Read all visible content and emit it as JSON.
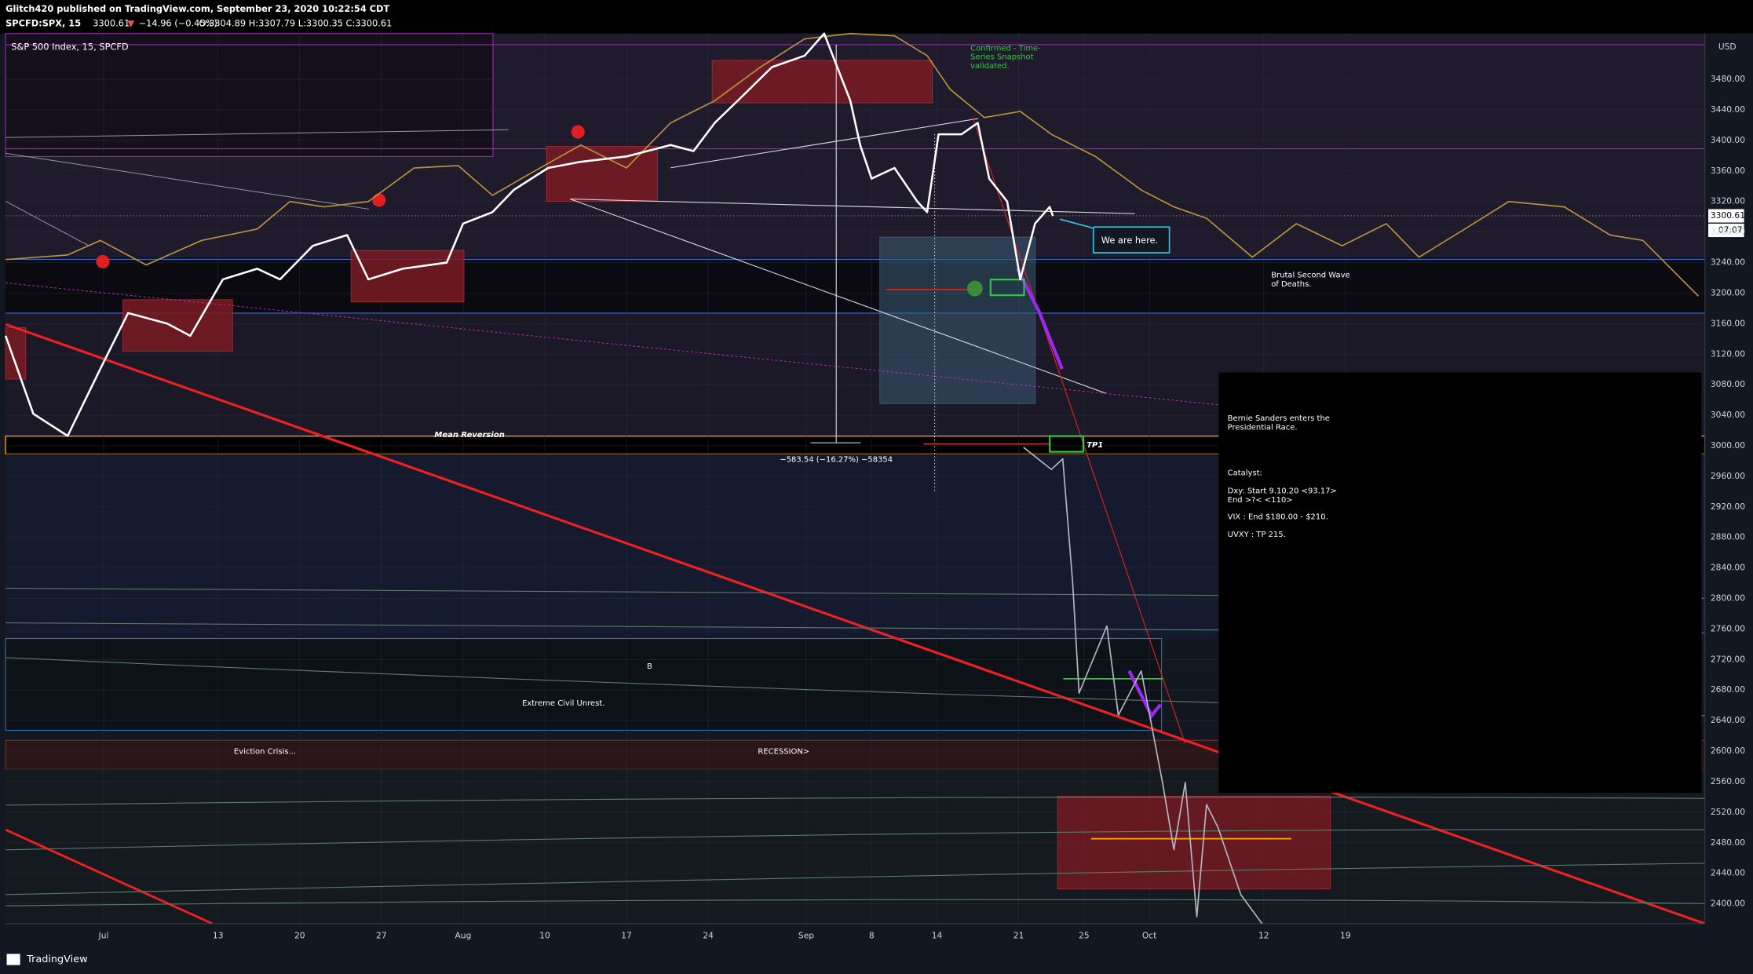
{
  "chart_data": {
    "type": "line",
    "header": {
      "author": "Glitch420 published on TradingView.com, September 23, 2020 10:22:54 CDT",
      "symbol": "SPCFD:SPX, 15",
      "last": "3300.61",
      "arrow": "▼",
      "change": "−14.96 (−0.45%)",
      "ohlc": "O:3304.89 H:3307.79 L:3300.35 C:3300.61"
    },
    "title": "S&P 500 Index, 15, SPCFD",
    "currency": "USD",
    "price_tag": "3300.61",
    "countdown": "07:07",
    "annotations": {
      "confirmed": [
        "Confirmed - Time-",
        "Series Snapshot",
        "validated."
      ],
      "here": "We are here.",
      "wave": [
        "Brutal Second Wave",
        "of Deaths."
      ],
      "mean": "Mean Reversion",
      "measure": "−583.54 (−16.27%) −58354",
      "tp1": "TP1",
      "b": "B",
      "unrest": "Extreme Civil Unrest.",
      "eviction": "Eviction Crisis...",
      "recession": "RECESSION>",
      "box": [
        "Bernie Sanders enters the",
        "Presidential Race.",
        "Catalyst:",
        "Dxy: Start 9.10.20 <93.17>",
        "End >?< <110>",
        "VIX : End $180.00 - $210.",
        "UVXY : TP 215."
      ]
    },
    "brand": "TradingView",
    "xlim": [
      -6,
      98
    ],
    "xticks": [
      {
        "value": 0,
        "label": "Jul"
      },
      {
        "value": 7,
        "label": "13"
      },
      {
        "value": 12,
        "label": "20"
      },
      {
        "value": 17,
        "label": "27"
      },
      {
        "value": 22,
        "label": "Aug"
      },
      {
        "value": 27,
        "label": "10"
      },
      {
        "value": 32,
        "label": "17"
      },
      {
        "value": 37,
        "label": "24"
      },
      {
        "value": 43,
        "label": "Sep"
      },
      {
        "value": 47,
        "label": "8"
      },
      {
        "value": 51,
        "label": "14"
      },
      {
        "value": 56,
        "label": "21"
      },
      {
        "value": 60,
        "label": "25"
      },
      {
        "value": 64,
        "label": "Oct"
      },
      {
        "value": 71,
        "label": "12"
      },
      {
        "value": 76,
        "label": "19"
      }
    ],
    "ylim": [
      2374,
      3540
    ],
    "yticks": [
      {
        "value": 2400,
        "label": "2400.00"
      },
      {
        "value": 2440,
        "label": "2440.00"
      },
      {
        "value": 2480,
        "label": "2480.00"
      },
      {
        "value": 2520,
        "label": "2520.00"
      },
      {
        "value": 2560,
        "label": "2560.00"
      },
      {
        "value": 2600,
        "label": "2600.00"
      },
      {
        "value": 2640,
        "label": "2640.00"
      },
      {
        "value": 2680,
        "label": "2680.00"
      },
      {
        "value": 2720,
        "label": "2720.00"
      },
      {
        "value": 2760,
        "label": "2760.00"
      },
      {
        "value": 2800,
        "label": "2800.00"
      },
      {
        "value": 2840,
        "label": "2840.00"
      },
      {
        "value": 2880,
        "label": "2880.00"
      },
      {
        "value": 2920,
        "label": "2920.00"
      },
      {
        "value": 2960,
        "label": "2960.00"
      },
      {
        "value": 3000,
        "label": "3000.00"
      },
      {
        "value": 3040,
        "label": "3040.00"
      },
      {
        "value": 3080,
        "label": "3080.00"
      },
      {
        "value": 3120,
        "label": "3120.00"
      },
      {
        "value": 3160,
        "label": "3160.00"
      },
      {
        "value": 3200,
        "label": "3200.00"
      },
      {
        "value": 3240,
        "label": "3240.00"
      },
      {
        "value": 3280,
        "label": "3280.00"
      },
      {
        "value": 3320,
        "label": "3320.00"
      },
      {
        "value": 3360,
        "label": "3360.00"
      },
      {
        "value": 3400,
        "label": "3400.00"
      },
      {
        "value": 3440,
        "label": "3440.00"
      },
      {
        "value": 3480,
        "label": "3480.00"
      }
    ],
    "grid": true,
    "series": [
      {
        "color": "#b8913a",
        "x": [
          -6.0,
          -2.2,
          -0.2,
          2.6,
          6.0,
          9.4,
          11.4,
          13.5,
          16.2,
          19.0,
          21.7,
          23.8,
          25.8,
          29.2,
          32.0,
          34.7,
          37.4,
          40.2,
          42.9,
          45.7,
          48.4,
          50.4,
          51.8,
          53.9,
          56.1,
          58.0,
          60.7,
          63.5,
          65.5,
          67.5,
          70.3,
          73.0,
          75.8,
          78.5,
          80.5,
          83.3,
          86.0,
          89.4,
          92.2,
          94.2,
          97.6
        ],
        "values": [
          3244,
          3250,
          3269,
          3237,
          3269,
          3284,
          3320,
          3313,
          3320,
          3364,
          3367,
          3328,
          3353,
          3394,
          3364,
          3423,
          3452,
          3496,
          3533,
          3540,
          3537,
          3511,
          3467,
          3430,
          3438,
          3408,
          3379,
          3335,
          3313,
          3298,
          3247,
          3291,
          3262,
          3291,
          3247,
          3284,
          3320,
          3313,
          3276,
          3269,
          3196
        ]
      },
      {
        "color": "#b2b5be",
        "x": [
          56.3,
          58.0,
          58.7,
          59.3,
          59.7,
          61.4,
          62.1,
          63.5,
          64.8,
          65.5,
          66.2,
          66.9,
          67.5,
          68.2,
          69.6,
          70.9
        ],
        "values": [
          2998,
          2969,
          2983,
          2822,
          2676,
          2764,
          2647,
          2705,
          2559,
          2471,
          2559,
          2383,
          2530,
          2500,
          2412,
          2374
        ]
      },
      {
        "color": "#ffffff",
        "x": [
          -6.0,
          -4.3,
          -2.2,
          -0.2,
          1.5,
          3.9,
          5.3,
          7.3,
          9.4,
          10.8,
          12.8,
          14.9,
          16.2,
          18.3,
          21.0,
          22.0,
          23.8,
          25.1,
          27.2,
          29.2,
          32.0,
          34.7,
          36.1,
          37.4,
          38.8,
          40.9,
          42.9,
          44.1,
          45.7,
          46.3,
          47.0,
          48.4,
          49.8,
          50.4,
          51.1,
          52.5,
          53.5,
          54.2,
          55.3,
          56.1,
          57.0,
          57.9,
          58.1
        ],
        "values": [
          3144,
          3042,
          3013,
          3101,
          3174,
          3160,
          3144,
          3218,
          3232,
          3218,
          3262,
          3276,
          3218,
          3232,
          3240,
          3291,
          3306,
          3335,
          3364,
          3372,
          3379,
          3394,
          3386,
          3423,
          3452,
          3496,
          3511,
          3540,
          3452,
          3394,
          3350,
          3364,
          3320,
          3306,
          3408,
          3408,
          3423,
          3350,
          3320,
          3218,
          3291,
          3313,
          3301
        ]
      }
    ]
  }
}
